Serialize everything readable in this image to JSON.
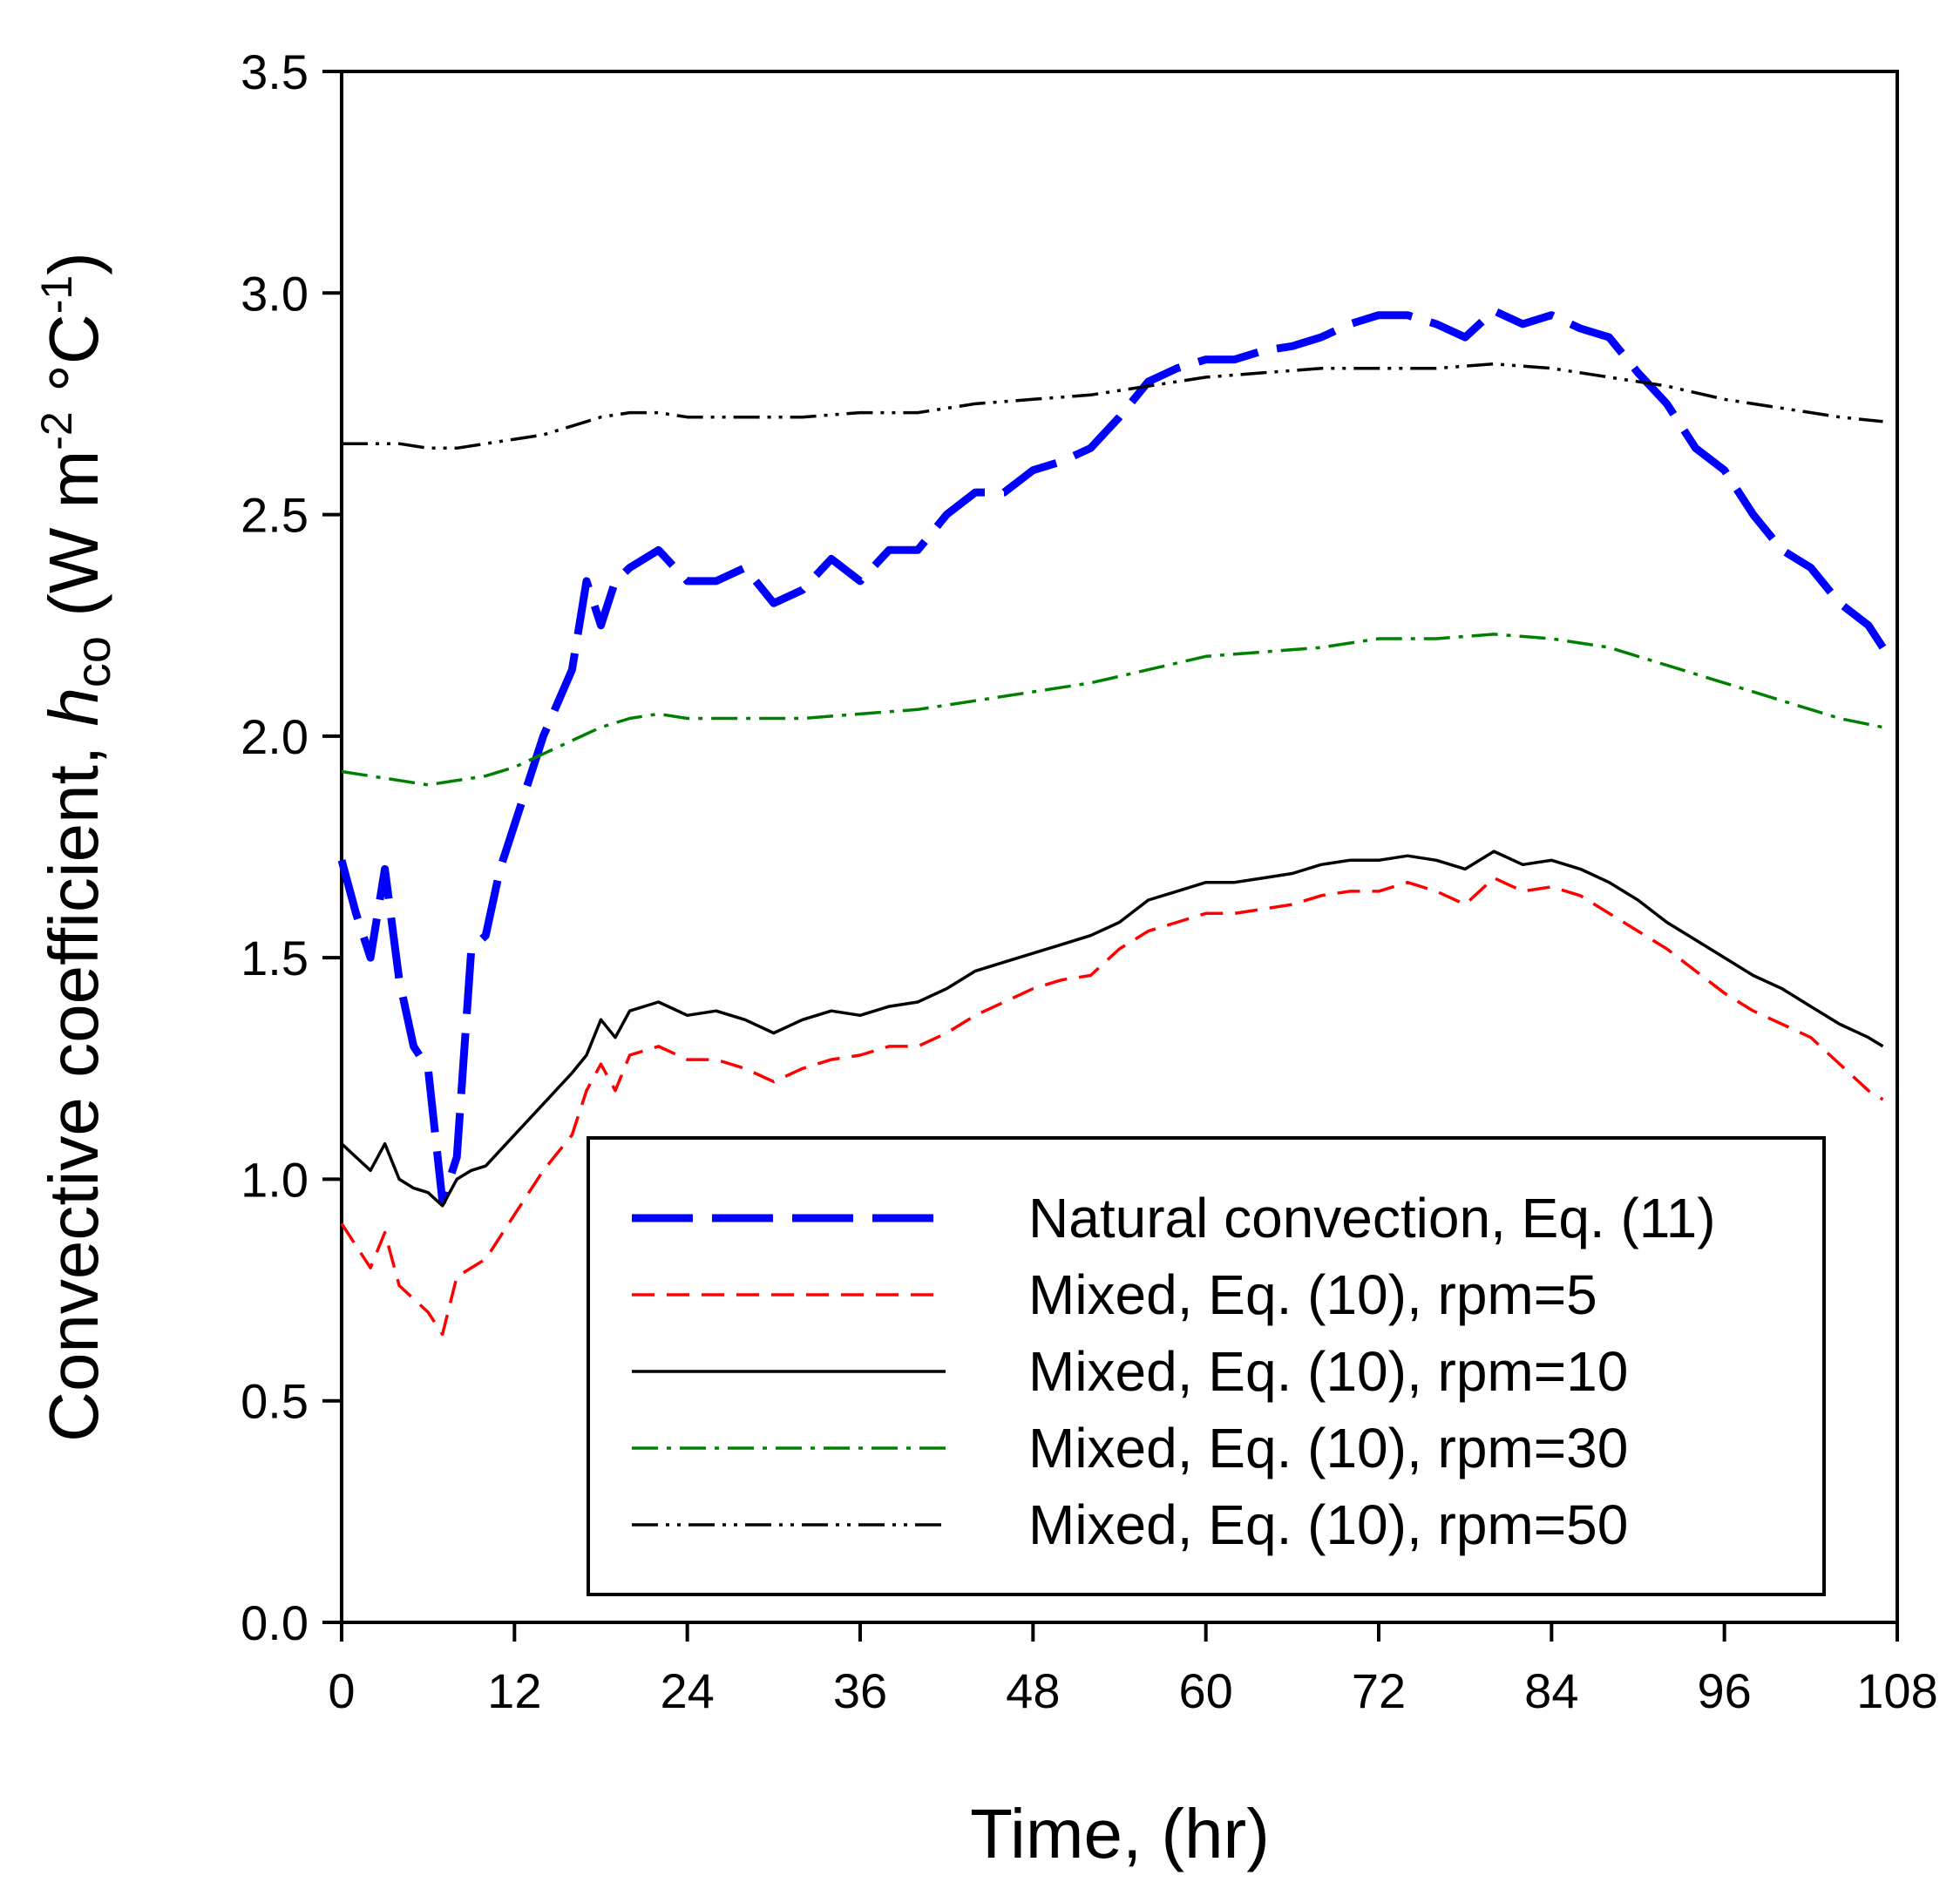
{
  "chart_data": {
    "type": "line",
    "title": "",
    "xlabel": "Time, (hr)",
    "ylabel": {
      "main": "Convective coefficient, ",
      "symbol": "h",
      "symbol_sub": "co",
      "units_open": " (W m",
      "sup1": "-2",
      "units_mid": " °C",
      "sup2": "-1",
      "units_close": ")"
    },
    "xlim": [
      0,
      108
    ],
    "ylim": [
      0.0,
      3.5
    ],
    "xticks": [
      "0",
      "12",
      "24",
      "36",
      "48",
      "60",
      "72",
      "84",
      "96",
      "108"
    ],
    "yticks": [
      "0.0",
      "0.5",
      "1.0",
      "1.5",
      "2.0",
      "2.5",
      "3.0",
      "3.5"
    ],
    "legend_position": "lower-right",
    "series": [
      {
        "name": "Natural convection, Eq. (11)",
        "color": "#0000ff",
        "style": "long-dash",
        "x": [
          0,
          1,
          2,
          3,
          4,
          5,
          6,
          7,
          8,
          9,
          10,
          11,
          12,
          14,
          16,
          17,
          18,
          19,
          20,
          22,
          24,
          26,
          28,
          30,
          32,
          34,
          36,
          38,
          40,
          42,
          44,
          46,
          48,
          50,
          52,
          54,
          56,
          58,
          60,
          62,
          64,
          66,
          68,
          70,
          72,
          74,
          76,
          78,
          80,
          82,
          84,
          86,
          88,
          90,
          92,
          94,
          96,
          98,
          100,
          102,
          104,
          106,
          107
        ],
        "values": [
          1.72,
          1.6,
          1.5,
          1.7,
          1.45,
          1.3,
          1.25,
          0.95,
          1.05,
          1.52,
          1.55,
          1.7,
          1.8,
          2.0,
          2.15,
          2.35,
          2.25,
          2.35,
          2.38,
          2.42,
          2.35,
          2.35,
          2.38,
          2.3,
          2.33,
          2.4,
          2.35,
          2.42,
          2.42,
          2.5,
          2.55,
          2.55,
          2.6,
          2.62,
          2.65,
          2.72,
          2.8,
          2.83,
          2.85,
          2.85,
          2.87,
          2.88,
          2.9,
          2.93,
          2.95,
          2.95,
          2.93,
          2.9,
          2.96,
          2.93,
          2.95,
          2.92,
          2.9,
          2.82,
          2.75,
          2.65,
          2.6,
          2.5,
          2.42,
          2.38,
          2.3,
          2.25,
          2.2
        ]
      },
      {
        "name": "Mixed, Eq. (10), rpm=5",
        "color": "#ff0000",
        "style": "dash",
        "x": [
          0,
          1,
          2,
          3,
          4,
          5,
          6,
          7,
          8,
          9,
          10,
          12,
          14,
          16,
          17,
          18,
          19,
          20,
          22,
          24,
          26,
          28,
          30,
          32,
          34,
          36,
          38,
          40,
          42,
          44,
          46,
          48,
          50,
          52,
          54,
          56,
          58,
          60,
          62,
          64,
          66,
          68,
          70,
          72,
          74,
          76,
          78,
          80,
          82,
          84,
          86,
          88,
          90,
          92,
          94,
          96,
          98,
          100,
          102,
          104,
          106,
          107
        ],
        "values": [
          0.9,
          0.85,
          0.8,
          0.88,
          0.76,
          0.73,
          0.7,
          0.65,
          0.78,
          0.8,
          0.82,
          0.92,
          1.02,
          1.1,
          1.2,
          1.26,
          1.2,
          1.28,
          1.3,
          1.27,
          1.27,
          1.25,
          1.22,
          1.25,
          1.27,
          1.28,
          1.3,
          1.3,
          1.33,
          1.37,
          1.4,
          1.43,
          1.45,
          1.46,
          1.52,
          1.56,
          1.58,
          1.6,
          1.6,
          1.61,
          1.62,
          1.64,
          1.65,
          1.65,
          1.67,
          1.65,
          1.62,
          1.68,
          1.65,
          1.66,
          1.64,
          1.6,
          1.56,
          1.52,
          1.47,
          1.42,
          1.38,
          1.35,
          1.32,
          1.26,
          1.2,
          1.18
        ]
      },
      {
        "name": "Mixed, Eq. (10), rpm=10",
        "color": "#000000",
        "style": "solid",
        "x": [
          0,
          1,
          2,
          3,
          4,
          5,
          6,
          7,
          8,
          9,
          10,
          12,
          14,
          16,
          17,
          18,
          19,
          20,
          22,
          24,
          26,
          28,
          30,
          32,
          34,
          36,
          38,
          40,
          42,
          44,
          46,
          48,
          50,
          52,
          54,
          56,
          58,
          60,
          62,
          64,
          66,
          68,
          70,
          72,
          74,
          76,
          78,
          80,
          82,
          84,
          86,
          88,
          90,
          92,
          94,
          96,
          98,
          100,
          102,
          104,
          106,
          107
        ],
        "values": [
          1.08,
          1.05,
          1.02,
          1.08,
          1.0,
          0.98,
          0.97,
          0.94,
          1.0,
          1.02,
          1.03,
          1.1,
          1.17,
          1.24,
          1.28,
          1.36,
          1.32,
          1.38,
          1.4,
          1.37,
          1.38,
          1.36,
          1.33,
          1.36,
          1.38,
          1.37,
          1.39,
          1.4,
          1.43,
          1.47,
          1.49,
          1.51,
          1.53,
          1.55,
          1.58,
          1.63,
          1.65,
          1.67,
          1.67,
          1.68,
          1.69,
          1.71,
          1.72,
          1.72,
          1.73,
          1.72,
          1.7,
          1.74,
          1.71,
          1.72,
          1.7,
          1.67,
          1.63,
          1.58,
          1.54,
          1.5,
          1.46,
          1.43,
          1.39,
          1.35,
          1.32,
          1.3
        ]
      },
      {
        "name": "Mixed, Eq. (10), rpm=30",
        "color": "#008000",
        "style": "dash-dot",
        "x": [
          0,
          2,
          4,
          6,
          8,
          10,
          12,
          14,
          16,
          18,
          20,
          22,
          24,
          28,
          32,
          36,
          40,
          44,
          48,
          52,
          56,
          60,
          64,
          68,
          72,
          76,
          80,
          84,
          88,
          92,
          96,
          100,
          104,
          107
        ],
        "values": [
          1.92,
          1.91,
          1.9,
          1.89,
          1.9,
          1.91,
          1.93,
          1.96,
          1.99,
          2.02,
          2.04,
          2.05,
          2.04,
          2.04,
          2.04,
          2.05,
          2.06,
          2.08,
          2.1,
          2.12,
          2.15,
          2.18,
          2.19,
          2.2,
          2.22,
          2.22,
          2.23,
          2.22,
          2.2,
          2.16,
          2.12,
          2.08,
          2.04,
          2.02
        ]
      },
      {
        "name": "Mixed, Eq. (10), rpm=50",
        "color": "#000000",
        "style": "dash-dot-dot",
        "x": [
          0,
          2,
          4,
          6,
          8,
          10,
          12,
          14,
          16,
          18,
          20,
          22,
          24,
          28,
          32,
          36,
          40,
          44,
          48,
          52,
          56,
          60,
          64,
          68,
          72,
          76,
          80,
          84,
          88,
          92,
          96,
          100,
          104,
          107
        ],
        "values": [
          2.66,
          2.66,
          2.66,
          2.65,
          2.65,
          2.66,
          2.67,
          2.68,
          2.7,
          2.72,
          2.73,
          2.73,
          2.72,
          2.72,
          2.72,
          2.73,
          2.73,
          2.75,
          2.76,
          2.77,
          2.79,
          2.81,
          2.82,
          2.83,
          2.83,
          2.83,
          2.84,
          2.83,
          2.81,
          2.79,
          2.76,
          2.74,
          2.72,
          2.71
        ]
      }
    ]
  }
}
